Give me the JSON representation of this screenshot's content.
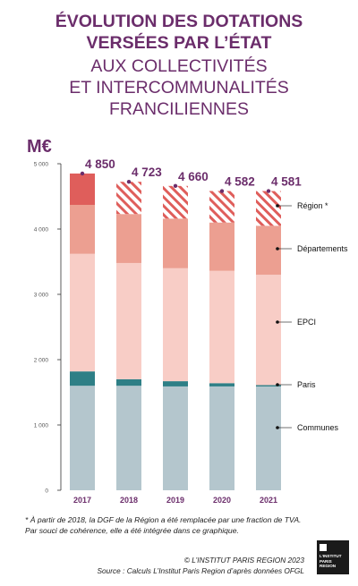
{
  "title": {
    "line1": "ÉVOLUTION DES DOTATIONS",
    "line2": "VERSÉES PAR L’ÉTAT",
    "line3": "AUX COLLECTIVITÉS",
    "line4": "ET INTERCOMMUNALITÉS",
    "line5": "FRANCILIENNES"
  },
  "colors": {
    "title": "#6b2d6b",
    "communes": "#b4c6cd",
    "paris": "#2e7f86",
    "epci": "#f8cdc6",
    "departements": "#ec9f91",
    "region": "#df5e5b",
    "region_hatch": "#df5e5b",
    "total_label": "#6b2d6b"
  },
  "chart_data": {
    "type": "bar",
    "stacked": true,
    "ylabel": "M€",
    "ylim": [
      0,
      5000
    ],
    "yticks": [
      0,
      1000,
      2000,
      3000,
      4000,
      5000
    ],
    "ytick_labels": [
      "0",
      "1 000",
      "2 000",
      "3 000",
      "4 000",
      "5 000"
    ],
    "categories": [
      "2017",
      "2018",
      "2019",
      "2020",
      "2021"
    ],
    "series": [
      {
        "name": "Communes",
        "key": "communes",
        "values": [
          1600,
          1600,
          1590,
          1590,
          1590
        ]
      },
      {
        "name": "Paris",
        "key": "paris",
        "values": [
          220,
          100,
          80,
          50,
          20
        ]
      },
      {
        "name": "EPCI",
        "key": "epci",
        "values": [
          1800,
          1780,
          1730,
          1720,
          1690
        ]
      },
      {
        "name": "Départements",
        "key": "departements",
        "values": [
          750,
          750,
          760,
          740,
          750
        ]
      },
      {
        "name": "Région *",
        "key": "region",
        "values": [
          480,
          493,
          500,
          482,
          531
        ],
        "hatched_from_index": 1
      }
    ],
    "totals": [
      4850,
      4723,
      4660,
      4582,
      4581
    ],
    "total_labels": [
      "4 850",
      "4 723",
      "4 660",
      "4 582",
      "4 581"
    ],
    "legend_placement": "right",
    "grid": false
  },
  "footnote": {
    "line1": "* À partir de 2018, la DGF de la Région a été remplacée par une fraction de TVA.",
    "line2": "Par souci de cohérence, elle a été intégrée dans ce graphique."
  },
  "credits": {
    "copyright": "© L’INSTITUT PARIS REGION 2023",
    "source": "Source : Calculs L’Institut Paris Region d’après données OFGL"
  },
  "logo": {
    "line1": "L’INSTITUT",
    "line2": "PARIS",
    "line3": "REGION"
  }
}
